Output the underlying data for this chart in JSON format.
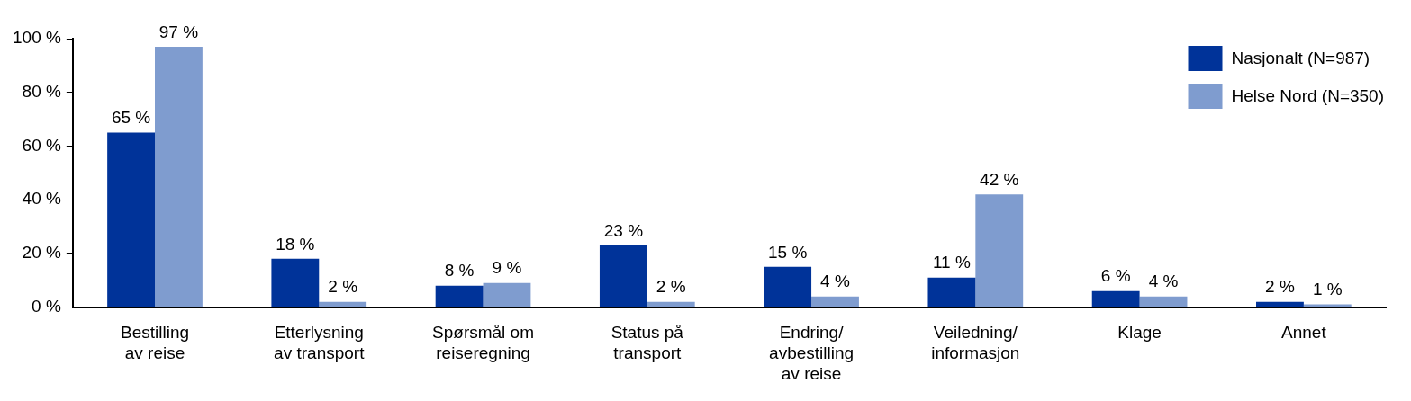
{
  "chart_data": {
    "type": "bar",
    "categories": [
      "Bestilling\nav reise",
      "Etterlysning\nav transport",
      "Spørsmål om\nreiseregning",
      "Status på\ntransport",
      "Endring/\navbestilling\nav reise",
      "Veiledning/\ninformasjon",
      "Klage",
      "Annet"
    ],
    "series": [
      {
        "name": "Nasjonalt (N=987)",
        "color": "#003399",
        "values": [
          65,
          18,
          8,
          23,
          15,
          11,
          6,
          2
        ],
        "value_labels": [
          "65 %",
          "18 %",
          "8 %",
          "23 %",
          "15 %",
          "11 %",
          "6 %",
          "2 %"
        ]
      },
      {
        "name": "Helse Nord (N=350)",
        "color": "#7f9ccf",
        "values": [
          97,
          2,
          9,
          2,
          4,
          42,
          4,
          1
        ],
        "value_labels": [
          "97 %",
          "2 %",
          "9 %",
          "2 %",
          "4 %",
          "42 %",
          "4 %",
          "1 %"
        ]
      }
    ],
    "ylim": [
      0,
      100
    ],
    "yticks": [
      {
        "value": 0,
        "label": "0 %"
      },
      {
        "value": 20,
        "label": "20 %"
      },
      {
        "value": 40,
        "label": "40 %"
      },
      {
        "value": 60,
        "label": "60 %"
      },
      {
        "value": 80,
        "label": "80 %"
      },
      {
        "value": 100,
        "label": "100 %"
      }
    ],
    "grid": false,
    "legend": "top right"
  }
}
